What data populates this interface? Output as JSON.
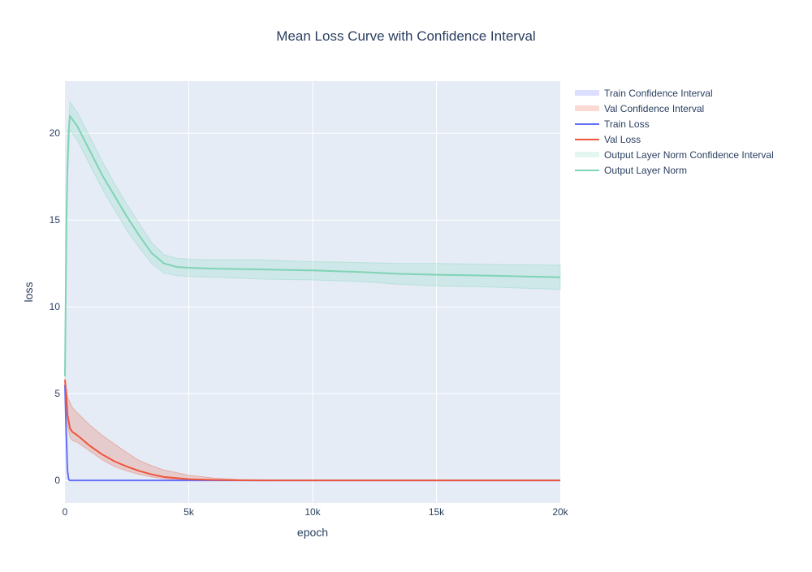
{
  "chart_data": {
    "type": "line",
    "title": "Mean Loss Curve with Confidence Interval",
    "xlabel": "epoch",
    "ylabel": "loss",
    "xlim": [
      0,
      20000
    ],
    "ylim": [
      -1.3,
      23.0
    ],
    "x_ticks": [
      0,
      5000,
      10000,
      15000,
      20000
    ],
    "x_tick_labels": [
      "0",
      "5k",
      "10k",
      "15k",
      "20k"
    ],
    "y_ticks": [
      0,
      5,
      10,
      15,
      20
    ],
    "y_tick_labels": [
      "0",
      "5",
      "10",
      "15",
      "20"
    ],
    "grid": true,
    "legend_position": "top-right outside",
    "background_color": "#e5ecf6",
    "series": [
      {
        "name": "Train Loss",
        "kind": "line",
        "color": "#636efa",
        "x": [
          0,
          50,
          100,
          150,
          200,
          300,
          500,
          1000,
          2000,
          3000,
          5000,
          7000,
          10000,
          15000,
          20000
        ],
        "y": [
          5.5,
          2.8,
          0.6,
          0.05,
          0.0,
          0.0,
          0.0,
          0.0,
          0.0,
          0.0,
          0.0,
          0.0,
          0.0,
          0.0,
          0.0
        ]
      },
      {
        "name": "Train Confidence Interval",
        "kind": "band",
        "color": "#636efa",
        "x": [
          0,
          50,
          100,
          150,
          200,
          300,
          500,
          1000,
          2000,
          5000,
          10000,
          15000,
          20000
        ],
        "upper": [
          5.7,
          3.0,
          0.7,
          0.08,
          0.01,
          0.01,
          0.01,
          0.01,
          0.01,
          0.01,
          0.01,
          0.01,
          0.01
        ],
        "lower": [
          5.3,
          2.6,
          0.5,
          0.02,
          0.0,
          0.0,
          0.0,
          0.0,
          0.0,
          0.0,
          0.0,
          0.0,
          0.0
        ]
      },
      {
        "name": "Val Loss",
        "kind": "line",
        "color": "#ef553b",
        "x": [
          0,
          50,
          100,
          200,
          300,
          500,
          1000,
          1500,
          2000,
          2500,
          3000,
          3500,
          4000,
          5000,
          6000,
          7000,
          8000,
          10000,
          15000,
          20000
        ],
        "y": [
          5.8,
          5.0,
          3.8,
          3.0,
          2.8,
          2.6,
          2.0,
          1.5,
          1.1,
          0.8,
          0.55,
          0.35,
          0.2,
          0.07,
          0.03,
          0.01,
          0.005,
          0.0,
          0.0,
          0.0
        ]
      },
      {
        "name": "Val Confidence Interval",
        "kind": "band",
        "color": "#ef553b",
        "x": [
          0,
          100,
          200,
          300,
          500,
          1000,
          1500,
          2000,
          2500,
          3000,
          3500,
          4000,
          5000,
          6000,
          7000,
          8000,
          10000,
          15000,
          20000
        ],
        "upper": [
          5.9,
          4.8,
          4.5,
          4.2,
          3.9,
          3.2,
          2.6,
          2.1,
          1.6,
          1.15,
          0.85,
          0.6,
          0.3,
          0.14,
          0.06,
          0.03,
          0.01,
          0.0,
          0.0
        ],
        "lower": [
          5.6,
          3.2,
          2.5,
          2.3,
          2.2,
          1.7,
          1.2,
          0.8,
          0.55,
          0.35,
          0.2,
          0.1,
          0.02,
          0.0,
          0.0,
          0.0,
          0.0,
          0.0,
          0.0
        ]
      },
      {
        "name": "Output Layer Norm",
        "kind": "line",
        "color": "#7fd4b5",
        "x": [
          0,
          30,
          60,
          100,
          150,
          200,
          300,
          500,
          1000,
          1500,
          2000,
          2500,
          3000,
          3500,
          4000,
          4500,
          5000,
          6000,
          8000,
          10000,
          12000,
          13500,
          15000,
          17000,
          20000
        ],
        "y": [
          6.0,
          10.5,
          15.0,
          18.0,
          20.2,
          21.0,
          20.8,
          20.4,
          19.0,
          17.6,
          16.4,
          15.2,
          14.1,
          13.1,
          12.5,
          12.3,
          12.25,
          12.2,
          12.15,
          12.1,
          12.0,
          11.9,
          11.85,
          11.8,
          11.7
        ]
      },
      {
        "name": "Output Layer Norm Confidence Interval",
        "kind": "band",
        "color": "#7fd4b5",
        "x": [
          0,
          100,
          200,
          300,
          500,
          1000,
          1500,
          2000,
          2500,
          3000,
          3500,
          4000,
          4500,
          5000,
          6000,
          8000,
          10000,
          12000,
          13500,
          15000,
          17000,
          20000
        ],
        "upper": [
          6.2,
          18.8,
          21.8,
          21.6,
          21.2,
          19.8,
          18.4,
          17.1,
          15.9,
          14.8,
          13.7,
          13.0,
          12.8,
          12.75,
          12.7,
          12.7,
          12.6,
          12.55,
          12.5,
          12.5,
          12.45,
          12.4
        ],
        "lower": [
          5.8,
          17.2,
          20.2,
          20.0,
          19.6,
          18.2,
          16.8,
          15.6,
          14.4,
          13.4,
          12.5,
          11.95,
          11.8,
          11.75,
          11.7,
          11.6,
          11.55,
          11.45,
          11.3,
          11.2,
          11.15,
          11.0
        ]
      }
    ],
    "legend_entries": [
      {
        "label": "Train Confidence Interval",
        "color": "#636efa",
        "kind": "band"
      },
      {
        "label": "Val Confidence Interval",
        "color": "#ef553b",
        "kind": "band"
      },
      {
        "label": "Train Loss",
        "color": "#636efa",
        "kind": "line"
      },
      {
        "label": "Val Loss",
        "color": "#ef553b",
        "kind": "line"
      },
      {
        "label": "Output Layer Norm Confidence Interval",
        "color": "#7fd4b5",
        "kind": "band"
      },
      {
        "label": "Output Layer Norm",
        "color": "#7fd4b5",
        "kind": "line"
      }
    ]
  }
}
